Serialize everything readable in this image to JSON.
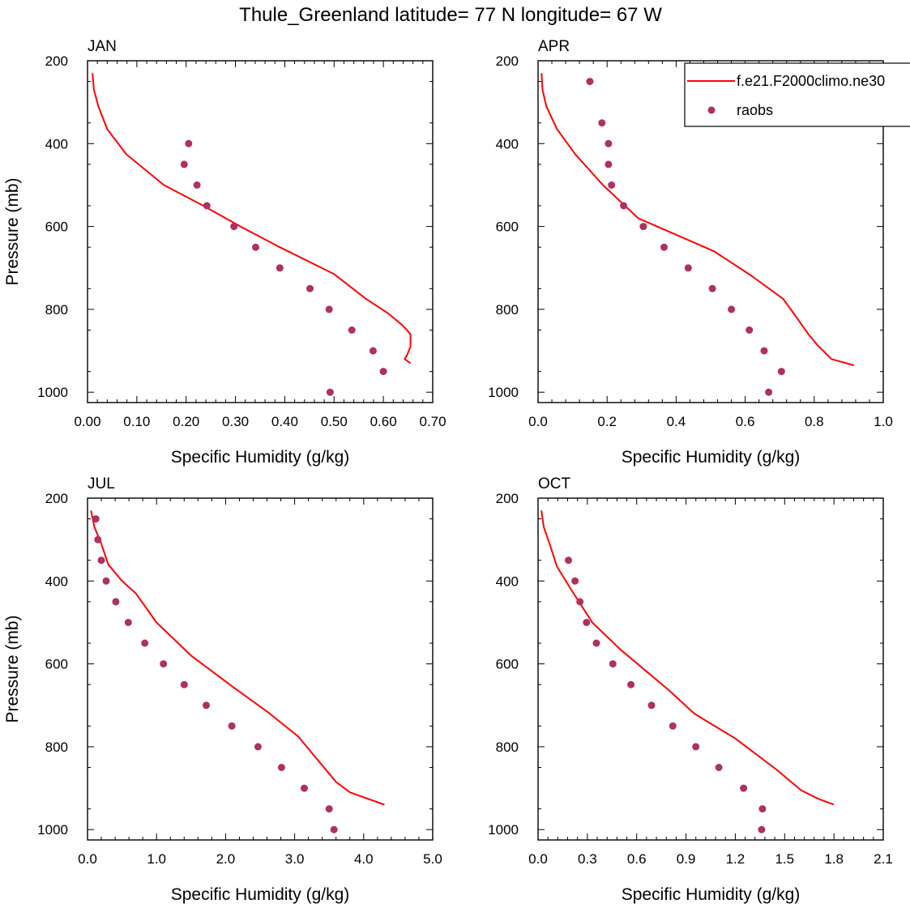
{
  "chart_data": {
    "type": "line",
    "title": "Thule_Greenland  latitude= 77 N longitude= 67 W",
    "ylabel": "Pressure (mb)",
    "xlabel": "Specific Humidity (g/kg)",
    "y_reversed": true,
    "ylim": [
      200,
      1025
    ],
    "yticks": [
      200,
      400,
      600,
      800,
      1000
    ],
    "colors": {
      "model": "#ff0000",
      "obs": "#b03060"
    },
    "legend": {
      "position": "top-right of APR panel",
      "model_label": "f.e21.F2000climo.ne30",
      "obs_label": "raobs"
    },
    "panels": [
      {
        "name": "JAN",
        "xlim": [
          0,
          0.7
        ],
        "xticks": [
          "0.00",
          "0.10",
          "0.20",
          "0.30",
          "0.40",
          "0.50",
          "0.60",
          "0.70"
        ],
        "model": {
          "name": "f.e21.F2000climo.ne30",
          "x": [
            0.01,
            0.013,
            0.022,
            0.04,
            0.078,
            0.155,
            0.235,
            0.31,
            0.39,
            0.5,
            0.565,
            0.61,
            0.64,
            0.655,
            0.655,
            0.648,
            0.643,
            0.655
          ],
          "y": [
            230,
            270,
            310,
            365,
            425,
            500,
            550,
            600,
            650,
            715,
            775,
            810,
            840,
            860,
            890,
            910,
            920,
            930
          ]
        },
        "obs": {
          "name": "raobs",
          "x": [
            0.205,
            0.196,
            0.222,
            0.242,
            0.297,
            0.341,
            0.39,
            0.451,
            0.49,
            0.536,
            0.579,
            0.6,
            0.492
          ],
          "y": [
            400,
            450,
            500,
            550,
            600,
            650,
            700,
            750,
            800,
            850,
            900,
            950,
            1000
          ]
        }
      },
      {
        "name": "APR",
        "xlim": [
          0,
          1.0
        ],
        "xticks": [
          "0.0",
          "0.2",
          "0.4",
          "0.6",
          "0.8",
          "1.0"
        ],
        "model": {
          "name": "f.e21.F2000climo.ne30",
          "x": [
            0.01,
            0.013,
            0.024,
            0.055,
            0.107,
            0.188,
            0.29,
            0.4,
            0.51,
            0.62,
            0.71,
            0.745,
            0.783,
            0.808,
            0.85,
            0.915
          ],
          "y": [
            230,
            270,
            310,
            365,
            425,
            500,
            580,
            620,
            660,
            720,
            775,
            815,
            860,
            885,
            920,
            935
          ]
        },
        "obs": {
          "name": "raobs",
          "x": [
            0.15,
            0.185,
            0.204,
            0.204,
            0.213,
            0.248,
            0.305,
            0.365,
            0.435,
            0.505,
            0.56,
            0.612,
            0.655,
            0.705,
            0.668
          ],
          "y": [
            250,
            350,
            400,
            450,
            500,
            550,
            600,
            650,
            700,
            750,
            800,
            850,
            900,
            950,
            1000
          ]
        }
      },
      {
        "name": "JUL",
        "xlim": [
          0,
          5.0
        ],
        "xticks": [
          "0.0",
          "1.0",
          "2.0",
          "3.0",
          "4.0",
          "5.0"
        ],
        "model": {
          "name": "f.e21.F2000climo.ne30",
          "x": [
            0.05,
            0.1,
            0.2,
            0.3,
            0.5,
            0.7,
            1.0,
            1.5,
            2.1,
            2.6,
            3.05,
            3.25,
            3.5,
            3.6,
            3.8,
            4.3
          ],
          "y": [
            230,
            270,
            310,
            360,
            400,
            430,
            500,
            580,
            655,
            715,
            775,
            815,
            865,
            885,
            910,
            940
          ]
        },
        "obs": {
          "name": "raobs",
          "x": [
            0.12,
            0.15,
            0.2,
            0.27,
            0.41,
            0.59,
            0.83,
            1.1,
            1.4,
            1.72,
            2.09,
            2.47,
            2.81,
            3.14,
            3.5,
            3.57
          ],
          "y": [
            250,
            300,
            350,
            400,
            450,
            500,
            550,
            600,
            650,
            700,
            750,
            800,
            850,
            900,
            950,
            1000
          ]
        }
      },
      {
        "name": "OCT",
        "xlim": [
          0,
          2.1
        ],
        "xticks": [
          "0.0",
          "0.3",
          "0.6",
          "0.9",
          "1.2",
          "1.5",
          "1.8",
          "2.1"
        ],
        "model": {
          "name": "f.e21.F2000climo.ne30",
          "x": [
            0.02,
            0.035,
            0.07,
            0.115,
            0.2,
            0.33,
            0.5,
            0.65,
            0.8,
            0.95,
            1.2,
            1.45,
            1.6,
            1.7,
            1.8
          ],
          "y": [
            230,
            270,
            310,
            365,
            420,
            500,
            565,
            615,
            665,
            720,
            780,
            855,
            905,
            925,
            940
          ]
        },
        "obs": {
          "name": "raobs",
          "x": [
            0.185,
            0.225,
            0.255,
            0.295,
            0.355,
            0.455,
            0.565,
            0.69,
            0.82,
            0.96,
            1.1,
            1.25,
            1.365,
            1.36
          ],
          "y": [
            350,
            400,
            450,
            500,
            550,
            600,
            650,
            700,
            750,
            800,
            850,
            900,
            950,
            1000
          ]
        }
      }
    ]
  }
}
